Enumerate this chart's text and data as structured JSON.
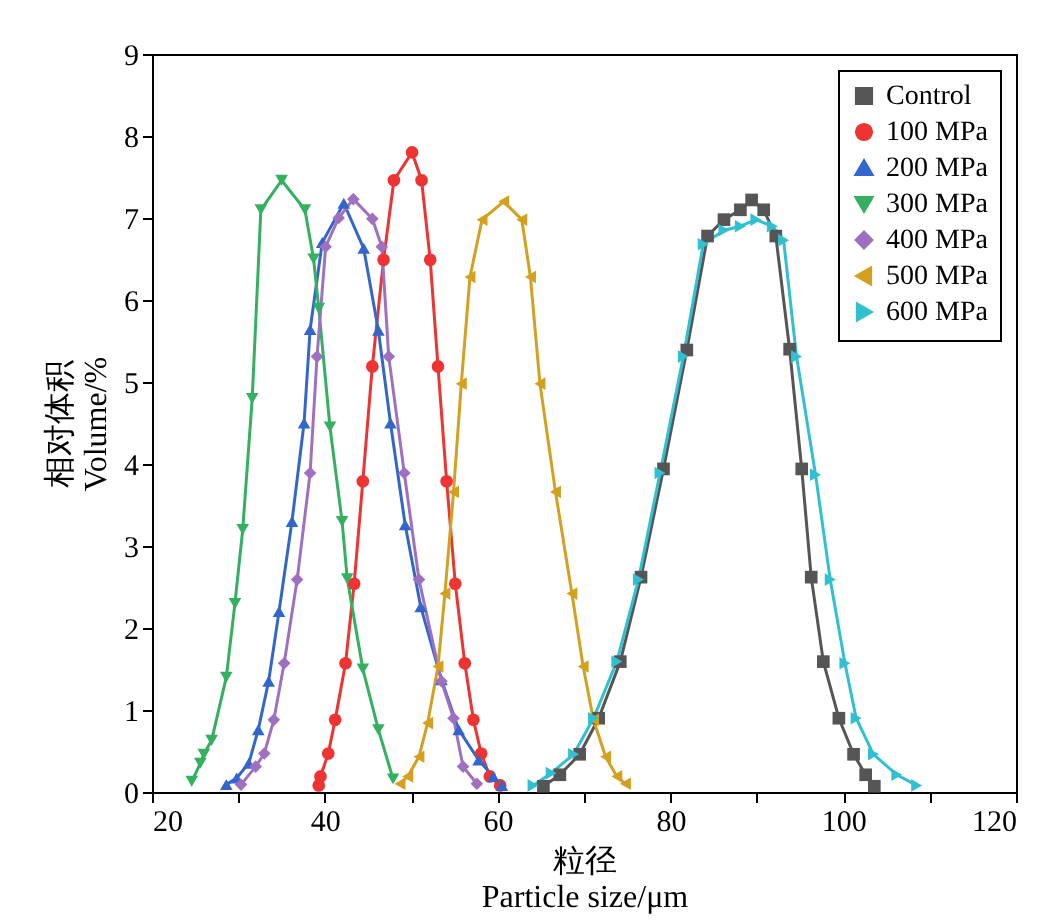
{
  "chart_data": {
    "type": "line",
    "xlabel": "粒径\nParticle size/μm",
    "ylabel": "相对体积\nVolume/%",
    "xlim": [
      20,
      120
    ],
    "ylim": [
      0,
      9
    ],
    "xticks": [
      20,
      {
        "value": 30,
        "label": null
      },
      40,
      {
        "value": 50,
        "label": null
      },
      60,
      {
        "value": 70,
        "label": null
      },
      80,
      {
        "value": 90,
        "label": null
      },
      100,
      {
        "value": 110,
        "label": null
      },
      120
    ],
    "yticks": [
      0,
      1,
      2,
      3,
      4,
      5,
      6,
      7,
      8,
      9
    ],
    "legend": "top right",
    "grid": false,
    "line_style": "solid",
    "series": [
      {
        "name": "Control",
        "color": "#555555",
        "marker": "square",
        "x": [
          65.3,
          67.2,
          69.5,
          71.7,
          74.2,
          76.6,
          79.2,
          81.9,
          84.3,
          86.2,
          88.1,
          89.4,
          90.8,
          92.2,
          93.8,
          95.2,
          96.3,
          97.7,
          99.5,
          101.2,
          102.6,
          103.6
        ],
        "values": [
          0.07,
          0.21,
          0.46,
          0.9,
          1.59,
          2.62,
          3.94,
          5.39,
          6.78,
          6.98,
          7.1,
          7.22,
          7.1,
          6.78,
          5.4,
          3.94,
          2.62,
          1.59,
          0.9,
          0.46,
          0.21,
          0.07
        ]
      },
      {
        "name": "100 MPa",
        "color": "#ee3333",
        "marker": "circle",
        "x": [
          39.3,
          39.5,
          40.4,
          41.2,
          42.4,
          43.4,
          44.4,
          45.5,
          46.8,
          48.0,
          50.1,
          51.2,
          52.2,
          53.1,
          54.1,
          55.1,
          56.2,
          57.2,
          58.1,
          59.1,
          60.3
        ],
        "values": [
          0.08,
          0.19,
          0.47,
          0.88,
          1.57,
          2.54,
          3.79,
          5.19,
          6.49,
          7.46,
          7.8,
          7.46,
          6.49,
          5.19,
          3.79,
          2.54,
          1.57,
          0.88,
          0.47,
          0.19,
          0.08
        ]
      },
      {
        "name": "200 MPa",
        "color": "#3366cc",
        "marker": "triangle-up",
        "x": [
          28.6,
          29.8,
          31.2,
          32.3,
          33.5,
          34.7,
          36.2,
          37.6,
          38.3,
          39.7,
          42.2,
          44.5,
          46.2,
          47.6,
          49.3,
          51.1,
          53.5,
          55.5,
          57.8,
          59.5,
          60.5
        ],
        "values": [
          0.09,
          0.17,
          0.35,
          0.76,
          1.35,
          2.2,
          3.3,
          4.5,
          5.64,
          6.7,
          7.18,
          6.63,
          5.63,
          4.5,
          3.26,
          2.26,
          1.37,
          0.76,
          0.39,
          0.19,
          0.08
        ]
      },
      {
        "name": "300 MPa",
        "color": "#33b060",
        "marker": "triangle-down",
        "x": [
          24.6,
          25.6,
          26.0,
          26.9,
          28.6,
          29.6,
          30.5,
          31.6,
          32.6,
          35.0,
          37.7,
          38.7,
          39.3,
          40.6,
          42.0,
          42.6,
          44.4,
          46.2,
          47.9
        ],
        "values": [
          0.13,
          0.35,
          0.46,
          0.63,
          1.4,
          2.3,
          3.2,
          4.8,
          7.1,
          7.46,
          7.1,
          6.5,
          5.9,
          4.45,
          3.3,
          2.6,
          1.5,
          0.76,
          0.16
        ]
      },
      {
        "name": "400 MPa",
        "color": "#a070c0",
        "marker": "diamond",
        "x": [
          30.3,
          32.0,
          33.0,
          34.1,
          35.3,
          36.8,
          38.3,
          39.1,
          40.1,
          41.6,
          43.3,
          45.5,
          46.6,
          47.4,
          49.2,
          50.9,
          53.5,
          54.9,
          56.0,
          57.6
        ],
        "values": [
          0.09,
          0.31,
          0.47,
          0.88,
          1.57,
          2.59,
          3.89,
          5.31,
          6.65,
          7.0,
          7.23,
          6.99,
          6.65,
          5.31,
          3.89,
          2.59,
          1.35,
          0.9,
          0.31,
          0.1
        ]
      },
      {
        "name": "500 MPa",
        "color": "#d4a020",
        "marker": "triangle-left",
        "x": [
          48.7,
          49.6,
          50.9,
          51.9,
          53.1,
          53.9,
          54.9,
          55.8,
          56.8,
          58.2,
          60.7,
          62.8,
          63.8,
          64.9,
          66.7,
          68.6,
          69.9,
          71.1,
          72.5,
          73.8,
          74.8
        ],
        "values": [
          0.1,
          0.19,
          0.43,
          0.84,
          1.53,
          2.42,
          3.66,
          4.98,
          6.28,
          6.98,
          7.2,
          6.98,
          6.28,
          4.98,
          3.66,
          2.42,
          1.53,
          0.88,
          0.43,
          0.19,
          0.1
        ]
      },
      {
        "name": "600 MPa",
        "color": "#30c0d0",
        "marker": "triangle-right",
        "x": [
          64.1,
          66.2,
          68.8,
          71.1,
          73.8,
          76.3,
          78.8,
          81.5,
          83.8,
          86.2,
          88.1,
          89.9,
          91.8,
          93.1,
          94.6,
          96.8,
          98.5,
          100.2,
          101.5,
          103.5,
          106.2,
          108.5
        ],
        "values": [
          0.08,
          0.23,
          0.46,
          0.9,
          1.59,
          2.59,
          3.89,
          5.31,
          6.68,
          6.85,
          6.9,
          6.98,
          6.9,
          6.73,
          5.31,
          3.87,
          2.59,
          1.57,
          0.9,
          0.46,
          0.21,
          0.08
        ]
      }
    ]
  }
}
